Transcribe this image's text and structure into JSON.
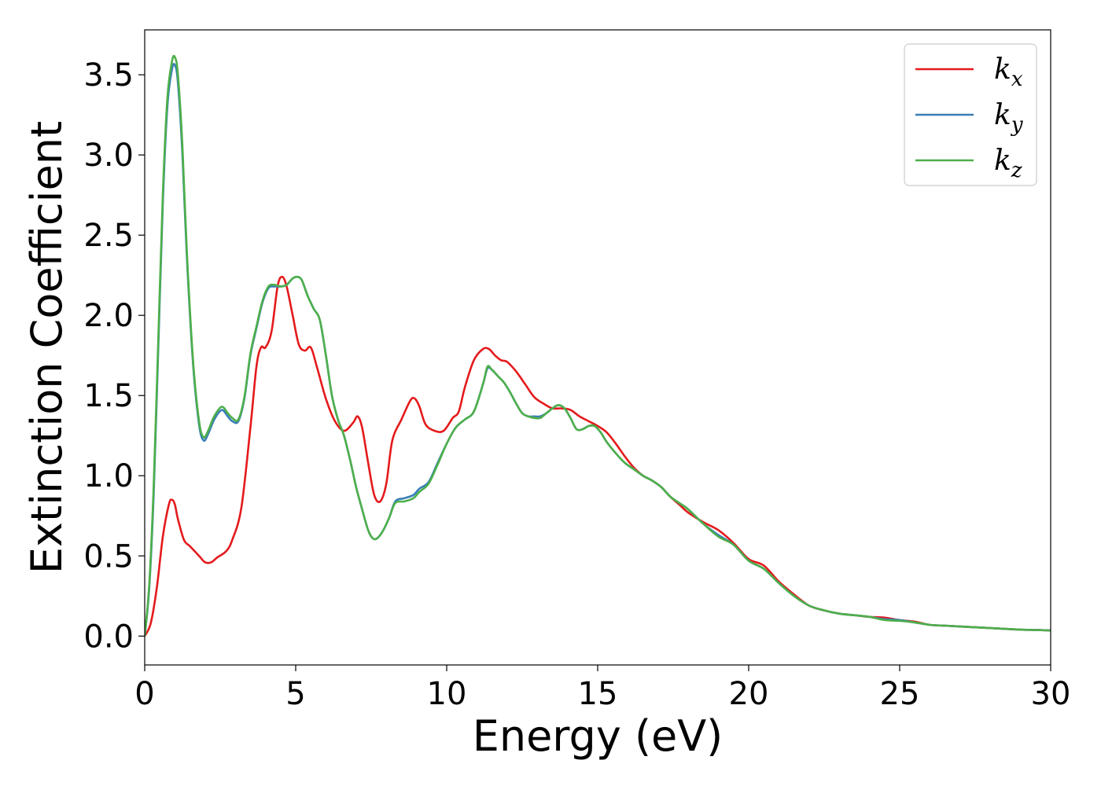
{
  "chart_data": {
    "type": "line",
    "title": "",
    "xlabel": "Energy (eV)",
    "ylabel": "Extinction Coefficient",
    "xlim": [
      0,
      30
    ],
    "ylim": [
      -0.18,
      3.78
    ],
    "xticks": [
      0,
      5,
      10,
      15,
      20,
      25,
      30
    ],
    "yticks": [
      0.0,
      0.5,
      1.0,
      1.5,
      2.0,
      2.5,
      3.0,
      3.5
    ],
    "xtick_labels": [
      "0",
      "5",
      "10",
      "15",
      "20",
      "25",
      "30"
    ],
    "ytick_labels": [
      "0.0",
      "0.5",
      "1.0",
      "1.5",
      "2.0",
      "2.5",
      "3.0",
      "3.5"
    ],
    "grid": false,
    "legend_position": "top-right",
    "series": [
      {
        "name": "k",
        "subscript": "x",
        "color": "#e41a1c",
        "x": [
          0,
          0.2,
          0.4,
          0.6,
          0.8,
          0.9,
          1.0,
          1.1,
          1.3,
          1.5,
          1.8,
          2.0,
          2.2,
          2.4,
          2.7,
          2.9,
          3.2,
          3.5,
          3.7,
          3.85,
          4.0,
          4.2,
          4.4,
          4.55,
          4.7,
          4.9,
          5.1,
          5.3,
          5.5,
          5.7,
          6.0,
          6.3,
          6.6,
          6.9,
          7.05,
          7.2,
          7.4,
          7.6,
          7.8,
          8.0,
          8.2,
          8.5,
          8.8,
          8.95,
          9.1,
          9.3,
          9.6,
          9.9,
          10.2,
          10.4,
          10.6,
          10.9,
          11.2,
          11.4,
          11.6,
          11.8,
          12.0,
          12.3,
          12.6,
          12.9,
          13.2,
          13.5,
          13.8,
          14.1,
          14.4,
          14.7,
          15.0,
          15.3,
          15.6,
          15.9,
          16.2,
          16.5,
          16.8,
          17.1,
          17.4,
          17.7,
          18.0,
          18.5,
          19.0,
          19.5,
          20.0,
          20.5,
          21.0,
          21.5,
          22.0,
          22.5,
          23.0,
          23.5,
          24.0,
          24.5,
          25.0,
          25.5,
          26.0,
          26.5,
          27.0,
          27.5,
          28.0,
          28.5,
          29.0,
          29.5,
          30.0
        ],
        "y": [
          0.0,
          0.08,
          0.3,
          0.62,
          0.82,
          0.85,
          0.82,
          0.73,
          0.6,
          0.56,
          0.5,
          0.46,
          0.46,
          0.49,
          0.53,
          0.6,
          0.8,
          1.3,
          1.68,
          1.8,
          1.8,
          1.9,
          2.18,
          2.24,
          2.18,
          2.0,
          1.82,
          1.78,
          1.8,
          1.68,
          1.48,
          1.34,
          1.28,
          1.33,
          1.37,
          1.3,
          1.08,
          0.88,
          0.84,
          0.95,
          1.22,
          1.35,
          1.47,
          1.48,
          1.43,
          1.32,
          1.28,
          1.28,
          1.36,
          1.4,
          1.55,
          1.72,
          1.79,
          1.79,
          1.75,
          1.72,
          1.71,
          1.65,
          1.57,
          1.49,
          1.45,
          1.42,
          1.42,
          1.41,
          1.37,
          1.34,
          1.31,
          1.27,
          1.2,
          1.12,
          1.05,
          1.0,
          0.97,
          0.93,
          0.87,
          0.82,
          0.77,
          0.71,
          0.66,
          0.58,
          0.48,
          0.44,
          0.34,
          0.26,
          0.19,
          0.16,
          0.14,
          0.13,
          0.12,
          0.115,
          0.1,
          0.09,
          0.07,
          0.065,
          0.06,
          0.055,
          0.05,
          0.045,
          0.04,
          0.038,
          0.035
        ]
      },
      {
        "name": "k",
        "subscript": "y",
        "color": "#377eb8",
        "x": [
          0,
          0.15,
          0.3,
          0.45,
          0.6,
          0.75,
          0.9,
          1.0,
          1.1,
          1.25,
          1.4,
          1.6,
          1.8,
          1.95,
          2.1,
          2.3,
          2.55,
          2.75,
          2.9,
          3.1,
          3.3,
          3.5,
          3.7,
          3.9,
          4.1,
          4.3,
          4.5,
          4.7,
          4.9,
          5.05,
          5.2,
          5.4,
          5.6,
          5.8,
          6.0,
          6.2,
          6.4,
          6.6,
          6.8,
          7.0,
          7.2,
          7.4,
          7.55,
          7.7,
          7.9,
          8.1,
          8.3,
          8.6,
          8.9,
          9.1,
          9.4,
          9.7,
          10.0,
          10.3,
          10.6,
          10.9,
          11.2,
          11.35,
          11.5,
          11.7,
          11.9,
          12.1,
          12.3,
          12.5,
          12.7,
          12.9,
          13.1,
          13.3,
          13.5,
          13.7,
          13.9,
          14.1,
          14.3,
          14.5,
          14.7,
          14.9,
          15.1,
          15.3,
          15.6,
          15.9,
          16.2,
          16.5,
          16.8,
          17.1,
          17.4,
          17.7,
          18.0,
          18.5,
          19.0,
          19.5,
          20.0,
          20.5,
          21.0,
          21.5,
          22.0,
          22.5,
          23.0,
          23.5,
          24.0,
          24.5,
          25.0,
          25.5,
          26.0,
          26.5,
          27.0,
          27.5,
          28.0,
          28.5,
          29.0,
          29.5,
          30.0
        ],
        "y": [
          0.0,
          0.3,
          0.9,
          1.8,
          2.7,
          3.3,
          3.53,
          3.56,
          3.45,
          3.0,
          2.35,
          1.7,
          1.32,
          1.22,
          1.26,
          1.35,
          1.41,
          1.37,
          1.34,
          1.34,
          1.48,
          1.75,
          1.92,
          2.08,
          2.17,
          2.18,
          2.18,
          2.19,
          2.23,
          2.24,
          2.22,
          2.12,
          2.04,
          1.97,
          1.75,
          1.5,
          1.35,
          1.25,
          1.1,
          0.93,
          0.79,
          0.66,
          0.61,
          0.61,
          0.66,
          0.74,
          0.84,
          0.86,
          0.88,
          0.92,
          0.96,
          1.08,
          1.2,
          1.3,
          1.35,
          1.4,
          1.57,
          1.67,
          1.66,
          1.62,
          1.58,
          1.52,
          1.45,
          1.39,
          1.37,
          1.37,
          1.37,
          1.39,
          1.42,
          1.44,
          1.42,
          1.36,
          1.29,
          1.29,
          1.31,
          1.31,
          1.27,
          1.21,
          1.14,
          1.08,
          1.04,
          1.0,
          0.97,
          0.93,
          0.87,
          0.83,
          0.79,
          0.7,
          0.63,
          0.57,
          0.47,
          0.42,
          0.33,
          0.25,
          0.19,
          0.16,
          0.14,
          0.13,
          0.12,
          0.105,
          0.1,
          0.085,
          0.07,
          0.065,
          0.06,
          0.055,
          0.05,
          0.045,
          0.04,
          0.038,
          0.035
        ]
      },
      {
        "name": "k",
        "subscript": "z",
        "color": "#4daf4a",
        "x": [
          0,
          0.15,
          0.3,
          0.45,
          0.6,
          0.75,
          0.9,
          1.0,
          1.1,
          1.25,
          1.4,
          1.6,
          1.8,
          1.95,
          2.1,
          2.3,
          2.55,
          2.75,
          2.9,
          3.1,
          3.3,
          3.5,
          3.7,
          3.9,
          4.1,
          4.3,
          4.5,
          4.7,
          4.9,
          5.05,
          5.2,
          5.4,
          5.6,
          5.8,
          6.0,
          6.2,
          6.4,
          6.6,
          6.8,
          7.0,
          7.2,
          7.4,
          7.55,
          7.7,
          7.9,
          8.1,
          8.3,
          8.6,
          8.9,
          9.1,
          9.4,
          9.7,
          10.0,
          10.3,
          10.6,
          10.9,
          11.2,
          11.35,
          11.5,
          11.7,
          11.9,
          12.1,
          12.3,
          12.5,
          12.7,
          12.9,
          13.1,
          13.3,
          13.5,
          13.7,
          13.9,
          14.1,
          14.3,
          14.5,
          14.7,
          14.9,
          15.1,
          15.3,
          15.6,
          15.9,
          16.2,
          16.5,
          16.8,
          17.1,
          17.4,
          17.7,
          18.0,
          18.5,
          19.0,
          19.5,
          20.0,
          20.5,
          21.0,
          21.5,
          22.0,
          22.5,
          23.0,
          23.5,
          24.0,
          24.5,
          25.0,
          25.5,
          26.0,
          26.5,
          27.0,
          27.5,
          28.0,
          28.5,
          29.0,
          29.5,
          30.0
        ],
        "y": [
          0.0,
          0.32,
          0.95,
          1.85,
          2.75,
          3.35,
          3.58,
          3.61,
          3.5,
          3.05,
          2.38,
          1.72,
          1.34,
          1.24,
          1.28,
          1.37,
          1.43,
          1.39,
          1.36,
          1.35,
          1.49,
          1.76,
          1.93,
          2.09,
          2.18,
          2.19,
          2.18,
          2.19,
          2.23,
          2.24,
          2.22,
          2.12,
          2.04,
          1.97,
          1.75,
          1.5,
          1.35,
          1.25,
          1.1,
          0.93,
          0.79,
          0.66,
          0.61,
          0.61,
          0.66,
          0.74,
          0.83,
          0.84,
          0.86,
          0.9,
          0.95,
          1.07,
          1.2,
          1.3,
          1.35,
          1.4,
          1.57,
          1.68,
          1.66,
          1.62,
          1.58,
          1.52,
          1.45,
          1.39,
          1.37,
          1.36,
          1.36,
          1.39,
          1.42,
          1.44,
          1.42,
          1.36,
          1.29,
          1.29,
          1.31,
          1.31,
          1.27,
          1.21,
          1.14,
          1.08,
          1.04,
          1.0,
          0.97,
          0.93,
          0.87,
          0.83,
          0.79,
          0.7,
          0.62,
          0.57,
          0.47,
          0.42,
          0.33,
          0.25,
          0.19,
          0.16,
          0.14,
          0.13,
          0.12,
          0.1,
          0.095,
          0.085,
          0.07,
          0.065,
          0.06,
          0.055,
          0.05,
          0.045,
          0.04,
          0.038,
          0.035
        ]
      }
    ]
  }
}
